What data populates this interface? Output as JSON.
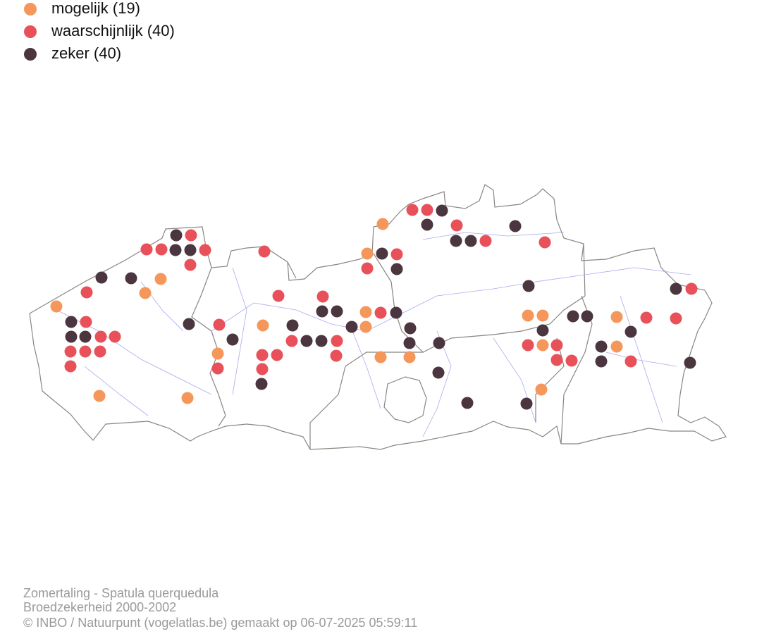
{
  "legend": {
    "items": [
      {
        "label": "mogelijk (19)",
        "color": "#f5975b"
      },
      {
        "label": "waarschijnlijk (40)",
        "color": "#e8515a"
      },
      {
        "label": "zeker (40)",
        "color": "#4b3640"
      }
    ]
  },
  "footer": {
    "lines": [
      "Zomertaling - Spatula querquedula",
      "Broedzekerheid 2000-2002",
      "© INBO / Natuurpunt (vogelatlas.be) gemaakt op 06-07-2025 05:59:11"
    ]
  }
}
